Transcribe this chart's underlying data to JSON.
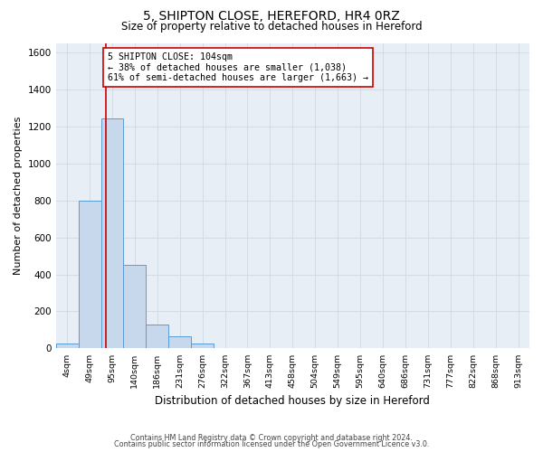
{
  "title_line1": "5, SHIPTON CLOSE, HEREFORD, HR4 0RZ",
  "title_line2": "Size of property relative to detached houses in Hereford",
  "xlabel": "Distribution of detached houses by size in Hereford",
  "ylabel": "Number of detached properties",
  "bin_labels": [
    "4sqm",
    "49sqm",
    "95sqm",
    "140sqm",
    "186sqm",
    "231sqm",
    "276sqm",
    "322sqm",
    "367sqm",
    "413sqm",
    "458sqm",
    "504sqm",
    "549sqm",
    "595sqm",
    "640sqm",
    "686sqm",
    "731sqm",
    "777sqm",
    "822sqm",
    "868sqm",
    "913sqm"
  ],
  "bar_values": [
    25,
    800,
    1240,
    450,
    130,
    65,
    25,
    0,
    0,
    0,
    0,
    0,
    0,
    0,
    0,
    0,
    0,
    0,
    0,
    0,
    0
  ],
  "bar_color": "#c8d8ec",
  "bar_edge_color": "#5b9bd5",
  "red_line_x": 2.22,
  "red_line_color": "#cc0000",
  "annotation_box_lines": [
    "5 SHIPTON CLOSE: 104sqm",
    "← 38% of detached houses are smaller (1,038)",
    "61% of semi-detached houses are larger (1,663) →"
  ],
  "annotation_box_edge_color": "#cc0000",
  "ylim": [
    0,
    1650
  ],
  "yticks": [
    0,
    200,
    400,
    600,
    800,
    1000,
    1200,
    1400,
    1600
  ],
  "grid_color": "#d0d8e0",
  "plot_bg_color": "#e8eef5",
  "fig_bg_color": "#ffffff",
  "footer_line1": "Contains HM Land Registry data © Crown copyright and database right 2024.",
  "footer_line2": "Contains public sector information licensed under the Open Government Licence v3.0."
}
